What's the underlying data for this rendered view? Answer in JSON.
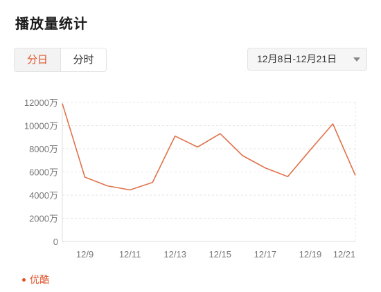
{
  "page": {
    "title": "播放量统计"
  },
  "tabs": [
    {
      "label": "分日",
      "active": true
    },
    {
      "label": "分时",
      "active": false
    }
  ],
  "date_range": {
    "value": "12月8日-12月21日"
  },
  "colors": {
    "accent": "#e0532b",
    "series": "#e0724a",
    "grid": "#e6e6e6",
    "axis_text": "#777777"
  },
  "chart_data": {
    "type": "line",
    "x": [
      "12/8",
      "12/9",
      "12/10",
      "12/11",
      "12/12",
      "12/13",
      "12/14",
      "12/15",
      "12/16",
      "12/17",
      "12/18",
      "12/19",
      "12/20",
      "12/21"
    ],
    "x_tick_labels": [
      "12/9",
      "12/11",
      "12/13",
      "12/15",
      "12/17",
      "12/19",
      "12/21"
    ],
    "y_tick_labels": [
      "12000万",
      "10000万",
      "8000万",
      "6000万",
      "4000万",
      "2000万",
      "0"
    ],
    "y_ticks": [
      12000,
      10000,
      8000,
      6000,
      4000,
      2000,
      0
    ],
    "ylim": [
      0,
      12000
    ],
    "grid": true,
    "legend_position": "bottom-left",
    "series": [
      {
        "name": "优酷",
        "values": [
          11900,
          5550,
          4800,
          4450,
          5100,
          9100,
          8150,
          9300,
          7400,
          6350,
          5600,
          7900,
          10150,
          5700
        ]
      }
    ]
  }
}
